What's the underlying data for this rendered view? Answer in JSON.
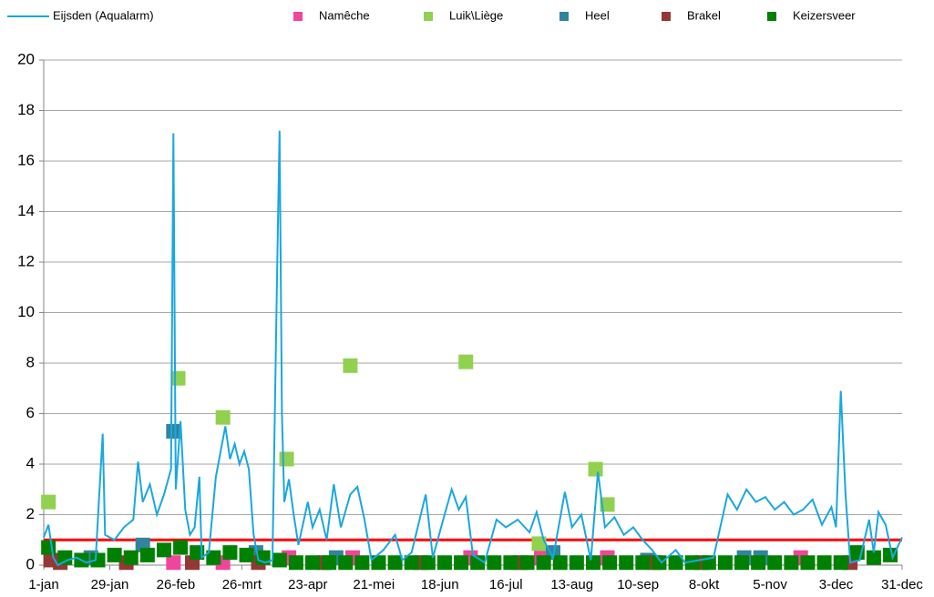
{
  "chart_data": {
    "type": "line",
    "xlim": [
      0,
      364
    ],
    "xticks": [
      {
        "value": 0,
        "label": "1-jan"
      },
      {
        "value": 28,
        "label": "29-jan"
      },
      {
        "value": 56,
        "label": "26-feb"
      },
      {
        "value": 84,
        "label": "26-mrt"
      },
      {
        "value": 112,
        "label": "23-apr"
      },
      {
        "value": 140,
        "label": "21-mei"
      },
      {
        "value": 168,
        "label": "18-jun"
      },
      {
        "value": 196,
        "label": "16-jul"
      },
      {
        "value": 224,
        "label": "13-aug"
      },
      {
        "value": 252,
        "label": "10-sep"
      },
      {
        "value": 280,
        "label": "8-okt"
      },
      {
        "value": 308,
        "label": "5-nov"
      },
      {
        "value": 336,
        "label": "3-dec"
      },
      {
        "value": 364,
        "label": "31-dec"
      }
    ],
    "ylim": [
      0,
      20
    ],
    "yticks": [
      0,
      2,
      4,
      6,
      8,
      10,
      12,
      14,
      16,
      18,
      20
    ],
    "grid": true,
    "reference_line": {
      "value": 1,
      "color": "#ff0000"
    },
    "series": [
      {
        "name": "Eijsden (Aqualarm)",
        "color": "#1aa7e0",
        "mode": "line",
        "x": [
          0,
          2,
          4,
          6,
          10,
          14,
          18,
          22,
          25,
          26,
          30,
          34,
          38,
          40,
          42,
          45,
          48,
          51,
          54,
          55,
          56,
          58,
          60,
          62,
          64,
          66,
          67,
          70,
          73,
          75,
          77,
          79,
          81,
          83,
          85,
          87,
          89,
          91,
          94,
          97,
          99,
          100,
          101,
          102,
          104,
          106,
          108,
          112,
          114,
          117,
          120,
          123,
          126,
          130,
          133,
          136,
          139,
          144,
          149,
          152,
          156,
          162,
          165,
          170,
          173,
          176,
          179,
          182,
          187,
          192,
          196,
          201,
          206,
          209,
          212,
          216,
          221,
          224,
          228,
          232,
          235,
          238,
          242,
          246,
          250,
          254,
          258,
          262,
          268,
          272,
          278,
          284,
          290,
          294,
          298,
          302,
          306,
          310,
          314,
          318,
          322,
          326,
          330,
          334,
          336,
          338,
          340,
          342,
          346,
          350,
          352,
          354,
          357,
          360,
          364
        ],
        "values": [
          1.1,
          1.6,
          0.3,
          0,
          0.2,
          0.3,
          0.1,
          0.2,
          5.2,
          1.2,
          1.0,
          1.5,
          1.8,
          4.1,
          2.5,
          3.2,
          2.0,
          2.8,
          3.8,
          17.1,
          3.0,
          5.7,
          2.2,
          1.2,
          1.5,
          3.5,
          0.3,
          0.5,
          3.5,
          4.5,
          5.5,
          4.2,
          4.8,
          4.0,
          4.5,
          3.8,
          1.2,
          0.2,
          0.1,
          0.2,
          11.8,
          17.2,
          6.0,
          2.5,
          3.4,
          2.0,
          0.8,
          2.5,
          1.5,
          2.2,
          1.0,
          3.2,
          1.5,
          2.8,
          3.1,
          1.8,
          0.2,
          0.6,
          1.2,
          0.2,
          0.5,
          2.8,
          0.3,
          2.0,
          3.0,
          2.2,
          2.7,
          0.4,
          0.1,
          1.8,
          1.5,
          1.8,
          1.3,
          2.1,
          1.0,
          0.3,
          2.9,
          1.5,
          2.0,
          0.2,
          3.7,
          1.5,
          1.9,
          1.2,
          1.5,
          1.0,
          0.6,
          0.1,
          0.6,
          0.1,
          0.2,
          0.3,
          2.8,
          2.2,
          3.0,
          2.5,
          2.7,
          2.2,
          2.5,
          2.0,
          2.2,
          2.6,
          1.6,
          2.3,
          1.5,
          6.9,
          2.8,
          0.1,
          0.2,
          1.8,
          0.5,
          2.1,
          1.6,
          0.3,
          1.1
        ]
      },
      {
        "name": "Namêche",
        "color": "#f0459a",
        "mode": "markers",
        "x": [
          55,
          76,
          104,
          131,
          181,
          211,
          239,
          321
        ],
        "values": [
          0.1,
          0.1,
          0.3,
          0.3,
          0.3,
          0.3,
          0.3,
          0.3
        ]
      },
      {
        "name": "Luik\\Liège",
        "color": "#92d050",
        "mode": "markers",
        "x": [
          2,
          57,
          76,
          103,
          130,
          179,
          210,
          234,
          239
        ],
        "values": [
          2.5,
          7.4,
          5.85,
          4.2,
          7.9,
          8.05,
          0.85,
          3.8,
          2.4
        ]
      },
      {
        "name": "Heel",
        "color": "#31849b",
        "mode": "markers",
        "x": [
          20,
          42,
          55,
          90,
          124,
          216,
          256,
          297,
          304
        ],
        "values": [
          0.3,
          0.8,
          5.3,
          0.5,
          0.3,
          0.5,
          0.2,
          0.3,
          0.3
        ]
      },
      {
        "name": "Brakel",
        "color": "#953735",
        "mode": "markers",
        "x": [
          3,
          7,
          35,
          63,
          91,
          119,
          160,
          202,
          259,
          279,
          342
        ],
        "values": [
          0.2,
          0.1,
          0.1,
          0.1,
          0.1,
          0.1,
          0.1,
          0.1,
          0.1,
          0.1,
          0.1
        ]
      },
      {
        "name": "Keizersveer",
        "color": "#008000",
        "mode": "markers",
        "x": [
          2,
          9,
          16,
          23,
          30,
          37,
          44,
          51,
          58,
          65,
          72,
          79,
          86,
          93,
          100,
          107,
          114,
          121,
          128,
          135,
          142,
          149,
          156,
          163,
          170,
          177,
          184,
          191,
          198,
          205,
          212,
          219,
          226,
          233,
          240,
          247,
          254,
          261,
          268,
          275,
          282,
          289,
          296,
          303,
          310,
          317,
          324,
          331,
          338,
          345,
          352,
          359
        ],
        "values": [
          0.7,
          0.3,
          0.2,
          0.2,
          0.4,
          0.3,
          0.4,
          0.6,
          0.7,
          0.5,
          0.3,
          0.5,
          0.4,
          0.3,
          0.2,
          0.1,
          0.1,
          0.1,
          0.1,
          0.1,
          0.1,
          0.1,
          0.1,
          0.1,
          0.1,
          0.1,
          0.1,
          0.1,
          0.1,
          0.1,
          0.1,
          0.1,
          0.1,
          0.1,
          0.1,
          0.1,
          0.1,
          0.1,
          0.1,
          0.1,
          0.1,
          0.1,
          0.1,
          0.1,
          0.1,
          0.1,
          0.1,
          0.1,
          0.1,
          0.5,
          0.3,
          0.4
        ]
      }
    ]
  }
}
